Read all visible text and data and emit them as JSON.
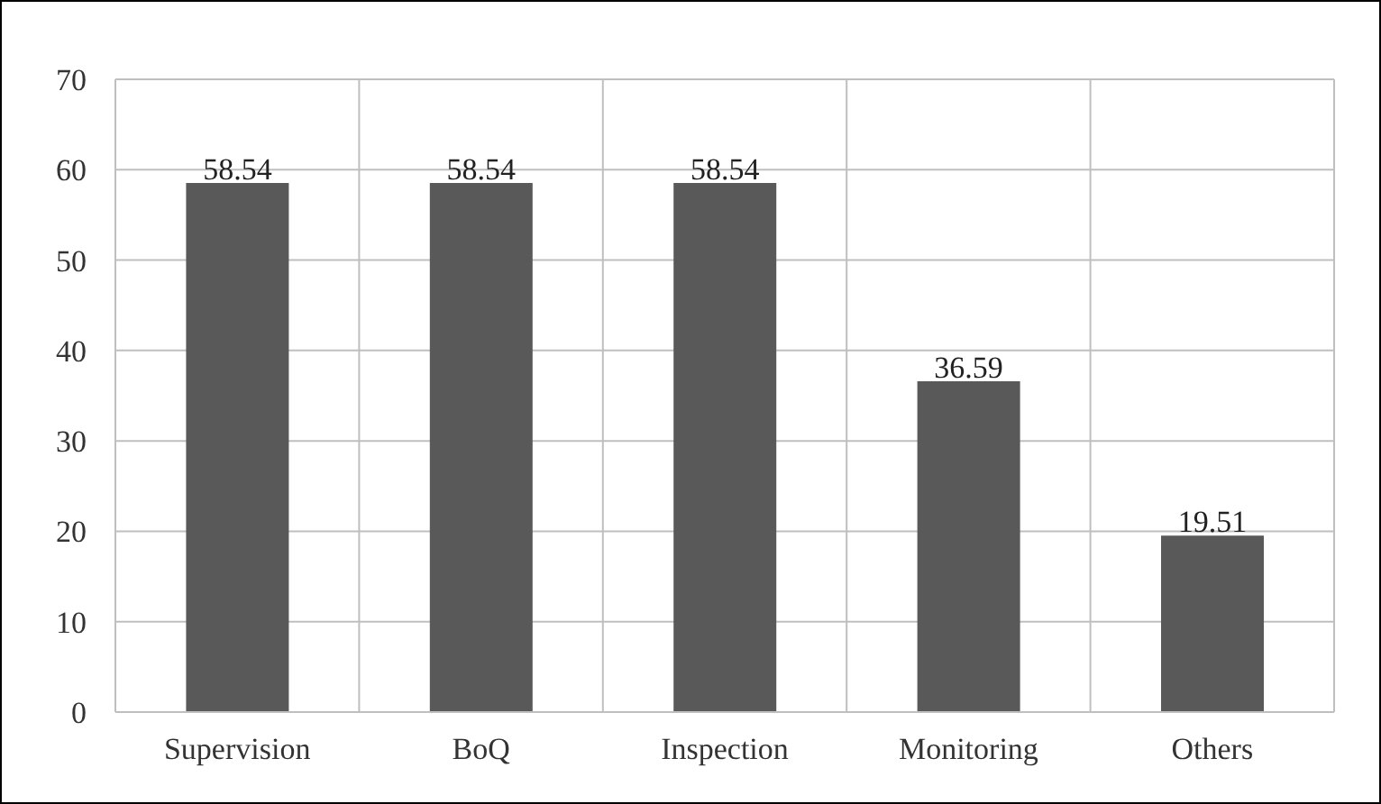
{
  "chart_data": {
    "type": "bar",
    "categories": [
      "Supervision",
      "BoQ",
      "Inspection",
      "Monitoring",
      "Others"
    ],
    "values": [
      58.54,
      58.54,
      58.54,
      36.59,
      19.51
    ],
    "color": "#595959",
    "ylim": [
      0,
      70
    ],
    "yticks": [
      0,
      10,
      20,
      30,
      40,
      50,
      60,
      70
    ],
    "grid": true,
    "data_labels": true
  }
}
